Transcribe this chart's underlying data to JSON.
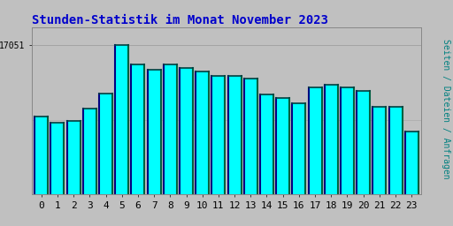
{
  "title": "Stunden-Statistik im Monat November 2023",
  "ylabel": "Seiten / Dateien / Anfragen",
  "ytick_label": "17051",
  "max_val": 17051,
  "hours": [
    0,
    1,
    2,
    3,
    4,
    5,
    6,
    7,
    8,
    9,
    10,
    11,
    12,
    13,
    14,
    15,
    16,
    17,
    18,
    19,
    20,
    21,
    22,
    23
  ],
  "values": [
    8900,
    8200,
    8400,
    9800,
    11500,
    17051,
    14800,
    14200,
    14800,
    14400,
    14000,
    13500,
    13500,
    13200,
    11400,
    11000,
    10400,
    12200,
    12500,
    12200,
    11800,
    10000,
    10000,
    7200
  ],
  "bar_color": "#00FFFF",
  "bar_left_edge_color": "#000080",
  "bar_right_edge_color": "#006040",
  "bar_top_edge_color": "#004040",
  "background_color": "#C0C0C0",
  "plot_bg_color": "#C0C0C0",
  "title_color": "#0000CC",
  "ylabel_color": "#008080",
  "ytick_color": "#000000",
  "xtick_color": "#000000",
  "title_fontsize": 10,
  "axis_fontsize": 8,
  "ytick_fontsize": 7,
  "ylabel_fontsize": 7
}
